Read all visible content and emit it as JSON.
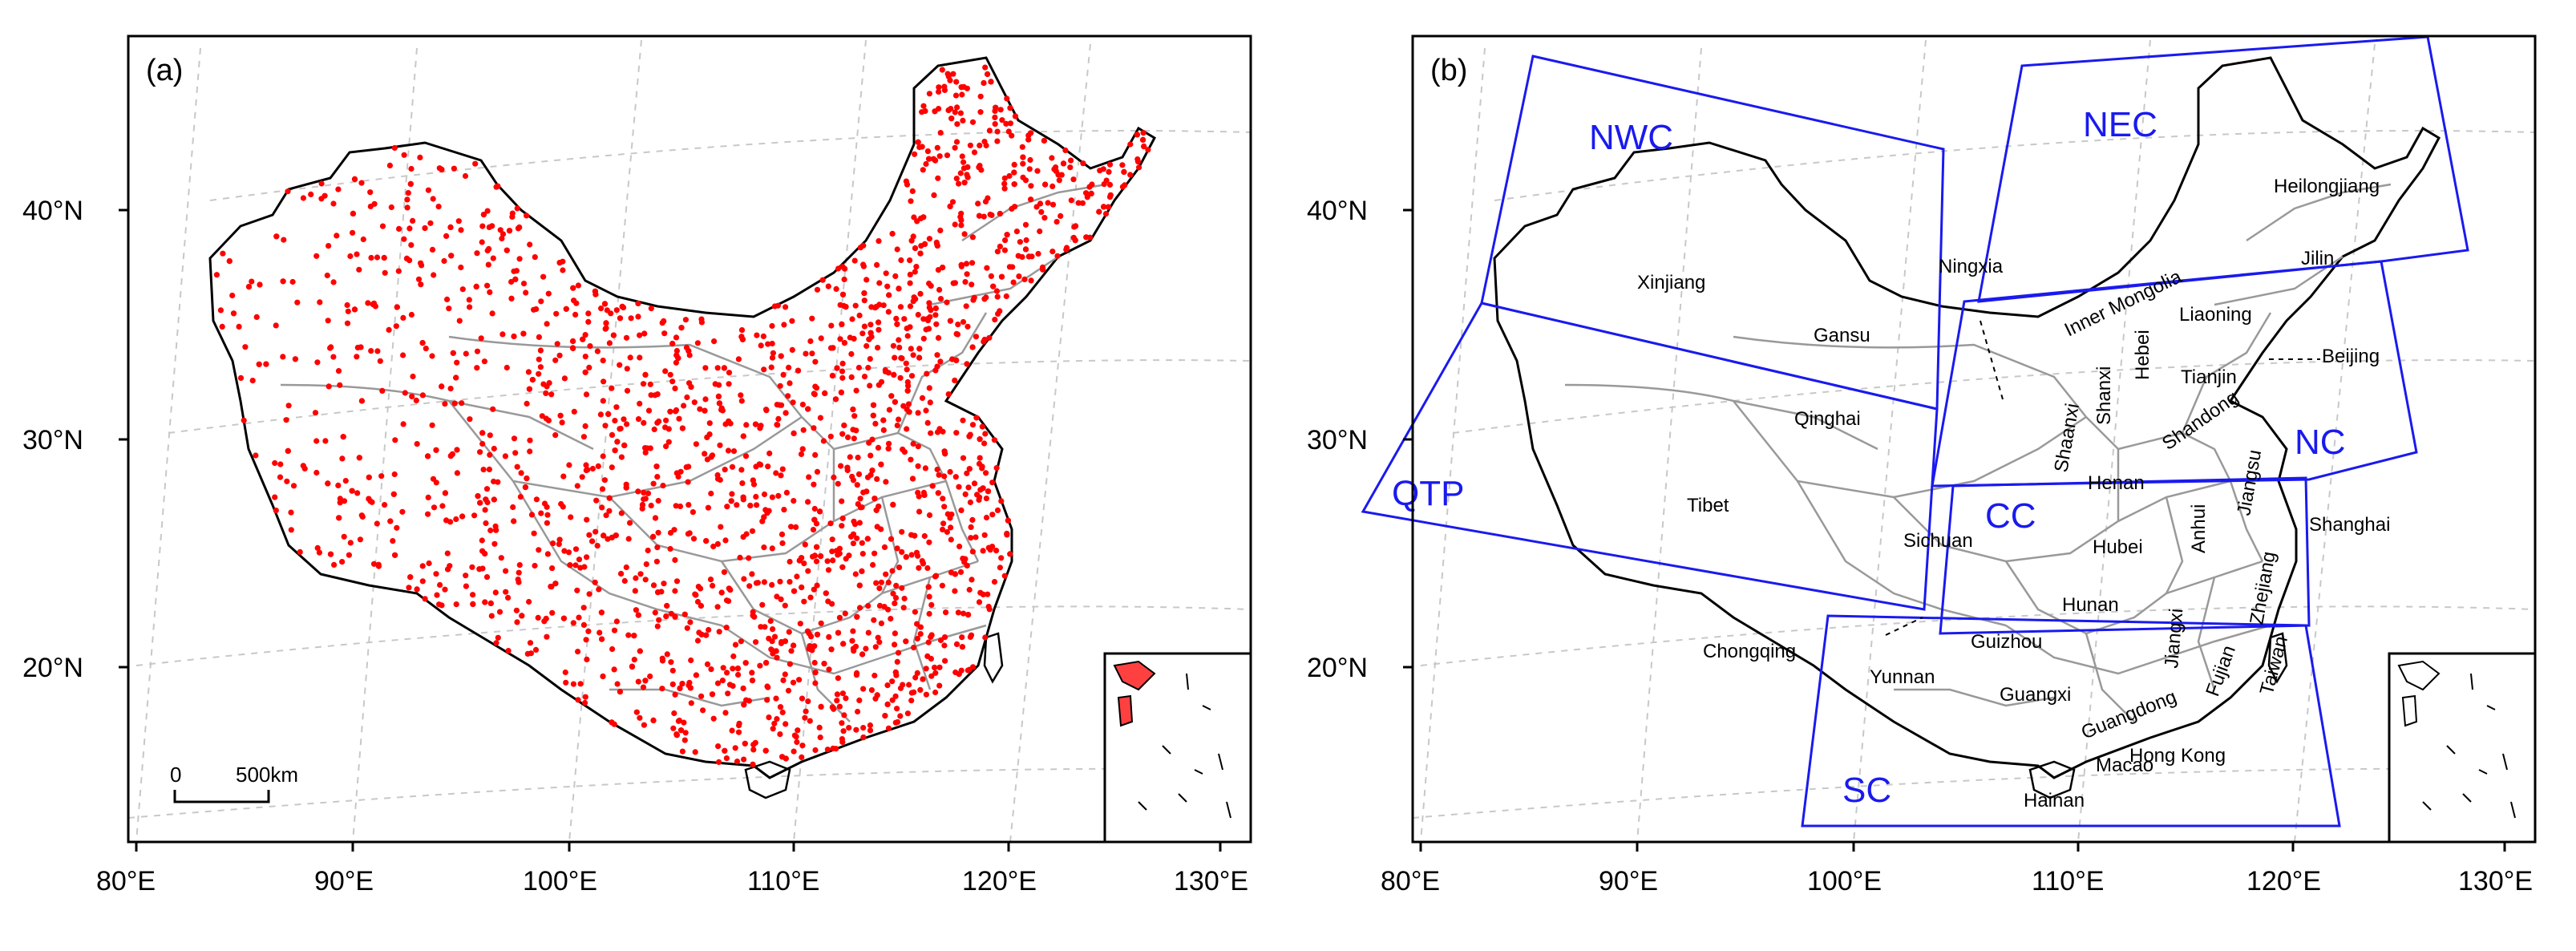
{
  "panels": [
    {
      "label": "(a)",
      "lat_ticks": [
        "40°N",
        "30°N",
        "20°N"
      ],
      "lon_ticks": [
        "80°E",
        "90°E",
        "100°E",
        "110°E",
        "120°E",
        "130°E"
      ],
      "scale_bar": {
        "start": "0",
        "end": "500km"
      },
      "station_color": "#ff0000"
    },
    {
      "label": "(b)",
      "lat_ticks": [
        "40°N",
        "30°N",
        "20°N"
      ],
      "lon_ticks": [
        "80°E",
        "90°E",
        "100°E",
        "110°E",
        "120°E",
        "130°E"
      ],
      "region_color": "#1a1aee",
      "regions": [
        "NWC",
        "NEC",
        "NC",
        "QTP",
        "CC",
        "SC"
      ],
      "provinces": [
        "Xinjiang",
        "Ningxia",
        "Inner Mongolia",
        "Heilongjiang",
        "Jilin",
        "Liaoning",
        "Beijing",
        "Tianjin",
        "Gansu",
        "Hebei",
        "Shanxi",
        "Shaanxi",
        "Shandong",
        "Qinghai",
        "Henan",
        "Tibet",
        "Sichuan",
        "Hubei",
        "Anhui",
        "Jiangsu",
        "Shanghai",
        "Hunan",
        "Jiangxi",
        "Zhejiang",
        "Chongqing",
        "Guizhou",
        "Fujian",
        "Yunnan",
        "Guangxi",
        "Guangdong",
        "Taiwan",
        "Hong Kong",
        "Macao",
        "Hainan"
      ]
    }
  ]
}
